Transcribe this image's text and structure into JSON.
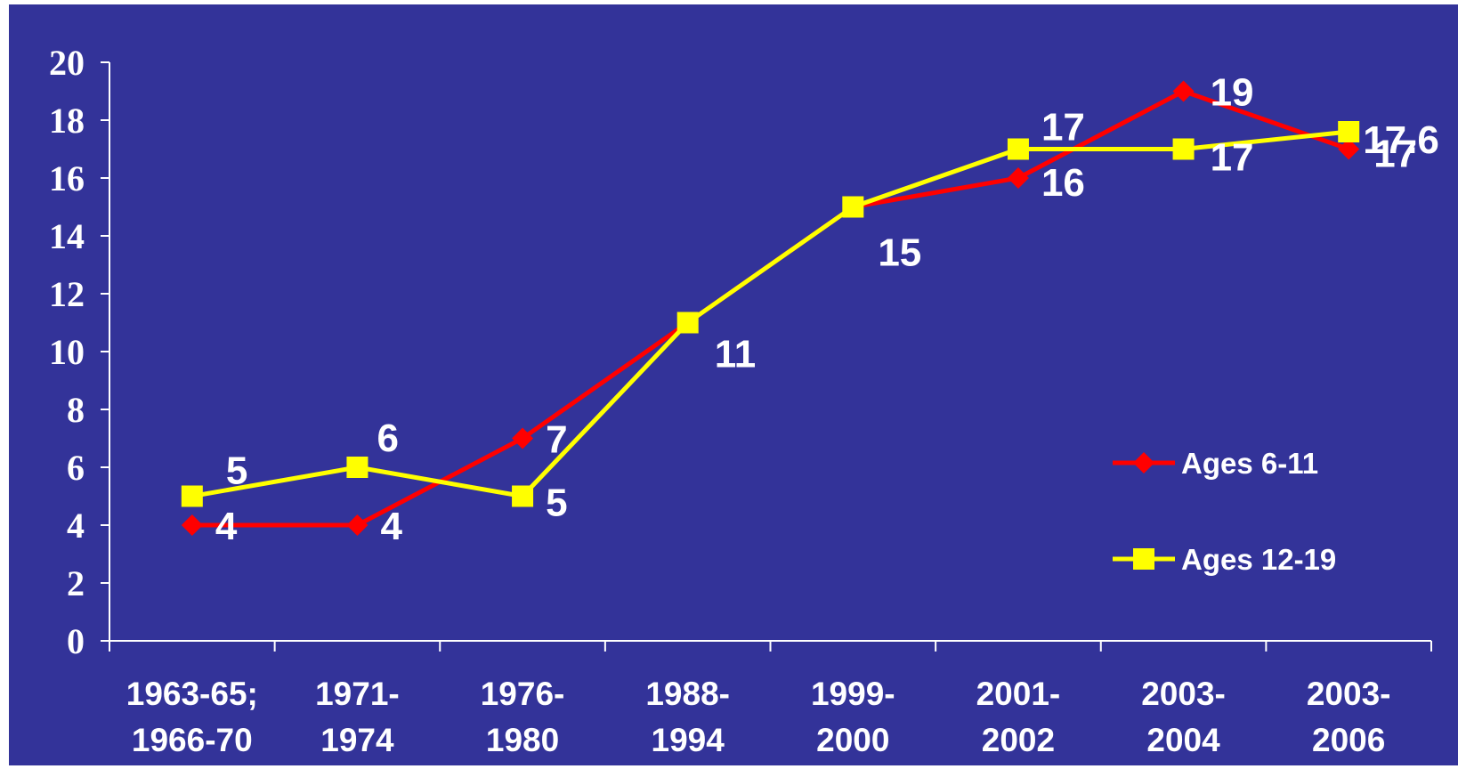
{
  "chart_data": {
    "type": "line",
    "background_color": "#333399",
    "axis_color": "#ffffff",
    "categories": [
      [
        "1963-65;",
        "1966-70"
      ],
      [
        "1971-",
        "1974"
      ],
      [
        "1976-",
        "1980"
      ],
      [
        "1988-",
        "1994"
      ],
      [
        "1999-",
        "2000"
      ],
      [
        "2001-",
        "2002"
      ],
      [
        "2003-",
        "2004"
      ],
      [
        "2003-",
        "2006"
      ]
    ],
    "series": [
      {
        "name": "Ages 6-11",
        "color": "#ff0000",
        "marker": "diamond",
        "values": [
          4,
          4,
          7,
          11,
          15,
          16,
          19,
          17
        ],
        "labels": [
          "4",
          "4",
          "7",
          "",
          "",
          "16",
          "19",
          "17"
        ]
      },
      {
        "name": "Ages 12-19",
        "color": "#ffff00",
        "marker": "square",
        "values": [
          5,
          6,
          5,
          11,
          15,
          17,
          17,
          17.6
        ],
        "labels": [
          "5",
          "6",
          "5",
          "11",
          "15",
          "17",
          "17",
          "17.6"
        ]
      }
    ],
    "ylim": [
      0,
      20
    ],
    "yticks": [
      0,
      2,
      4,
      6,
      8,
      10,
      12,
      14,
      16,
      18,
      20
    ],
    "grid": false,
    "legend": "right"
  }
}
